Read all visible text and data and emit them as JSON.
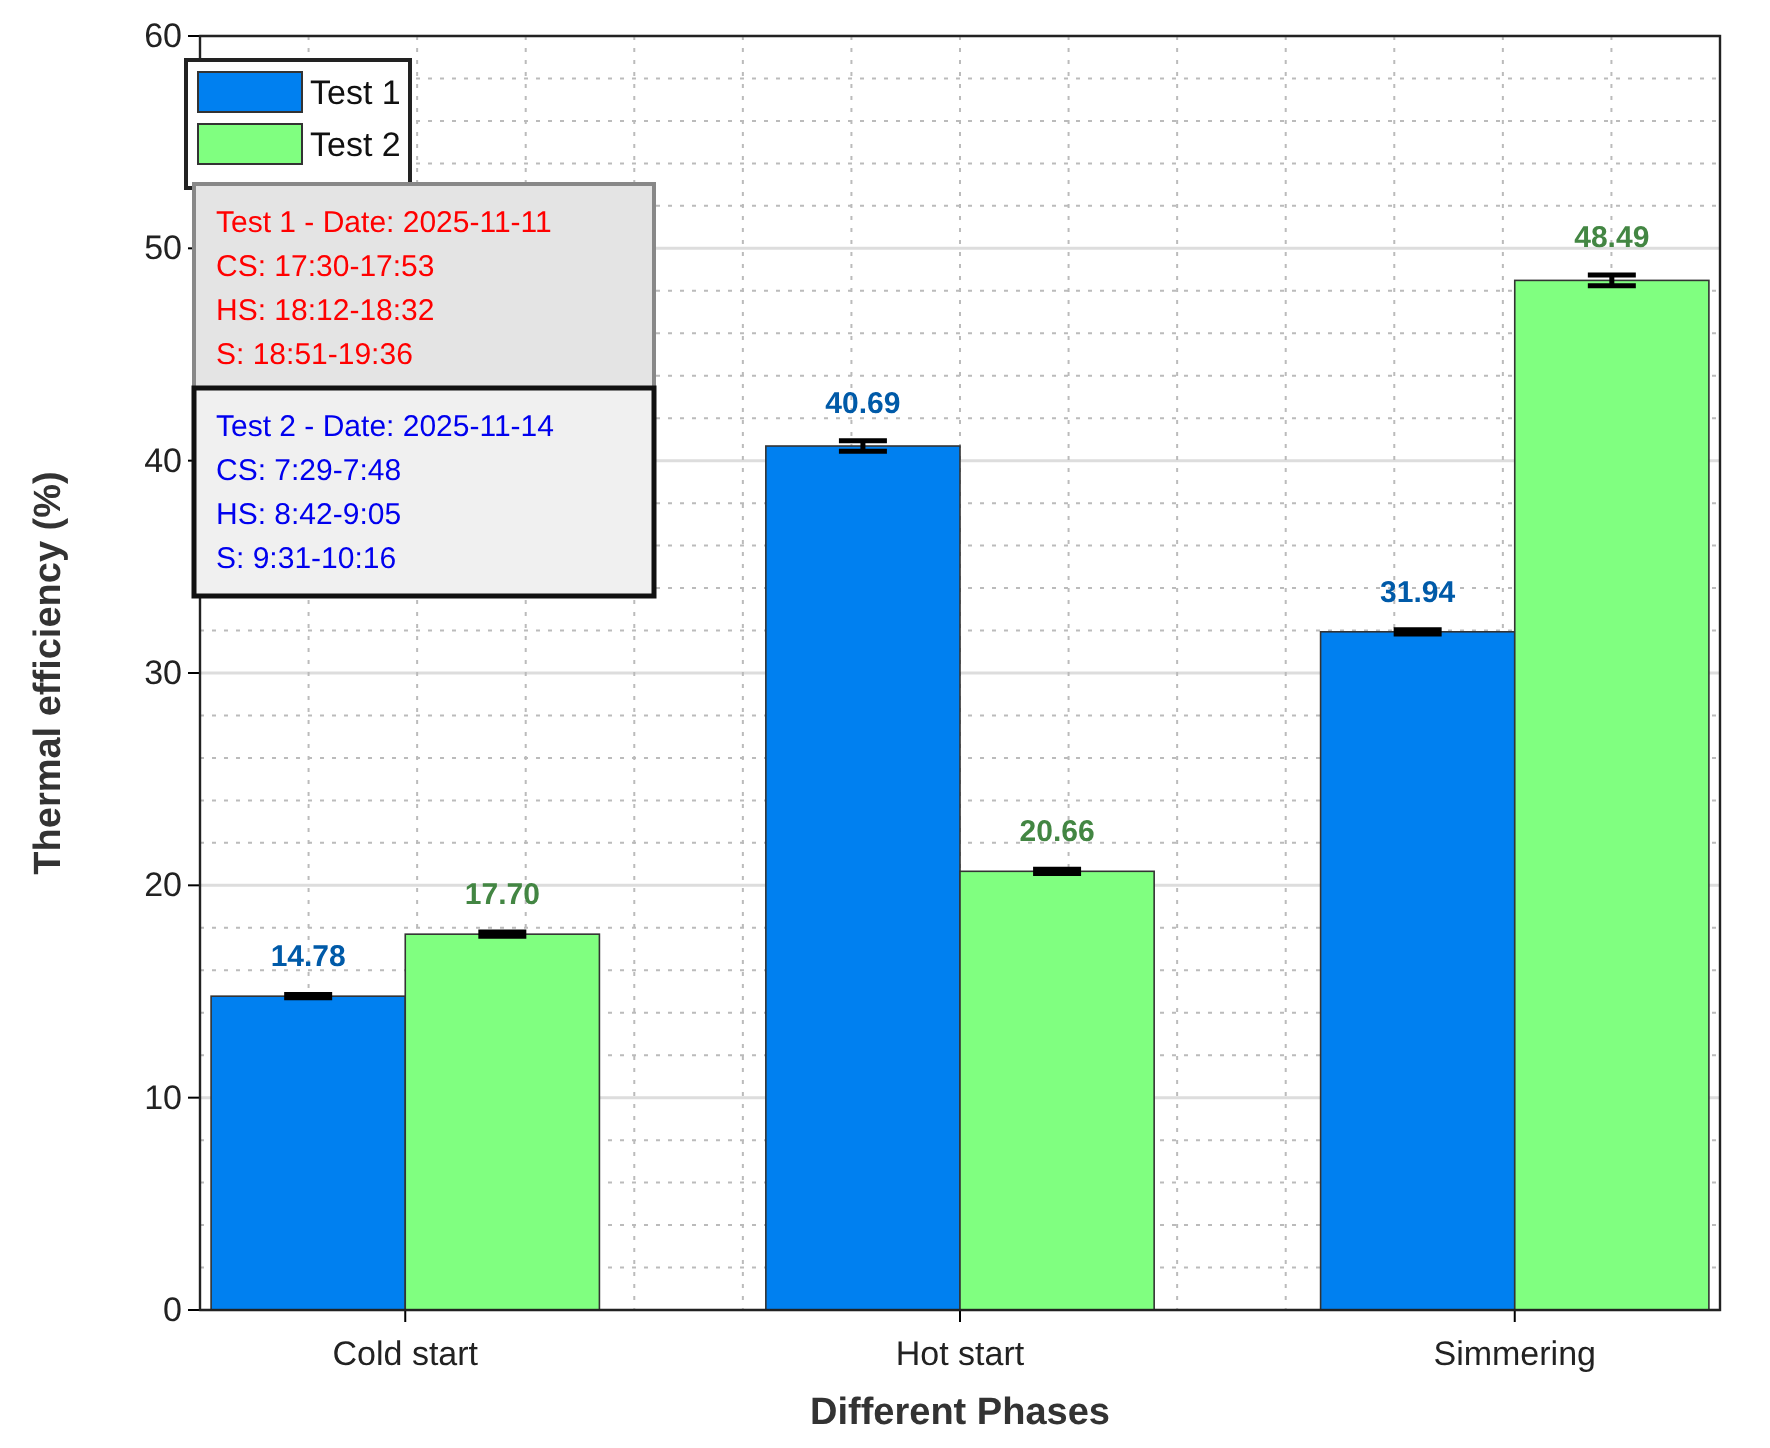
{
  "chart_data": {
    "type": "bar",
    "xlabel": "Different Phases",
    "ylabel": "Thermal efficiency (%)",
    "categories": [
      "Cold start",
      "Hot start",
      "Simmering"
    ],
    "series": [
      {
        "name": "Test 1",
        "color": "#0080f0",
        "values": [
          14.78,
          40.69,
          31.94
        ],
        "value_labels": [
          "14.78",
          "40.69",
          "31.94"
        ],
        "errors": [
          0.08,
          0.25,
          0.1
        ]
      },
      {
        "name": "Test 2",
        "color": "#80ff80",
        "values": [
          17.7,
          20.66,
          48.49
        ],
        "value_labels": [
          "17.70",
          "20.66",
          "48.49"
        ],
        "errors": [
          0.1,
          0.1,
          0.25
        ]
      }
    ],
    "ylim": [
      0,
      60
    ],
    "yticks": [
      0,
      10,
      20,
      30,
      40,
      50,
      60
    ],
    "grid": true,
    "legend": "top left",
    "annotations": [
      "Test 1 - Date: 2025-11-11\nCS: 17:30-17:53\nHS: 18:12-18:32\nS: 18:51-19:36",
      "Test 2 - Date: 2025-11-14\nCS: 7:29-7:48\nHS: 8:42-9:05\nS: 9:31-10:16"
    ]
  }
}
